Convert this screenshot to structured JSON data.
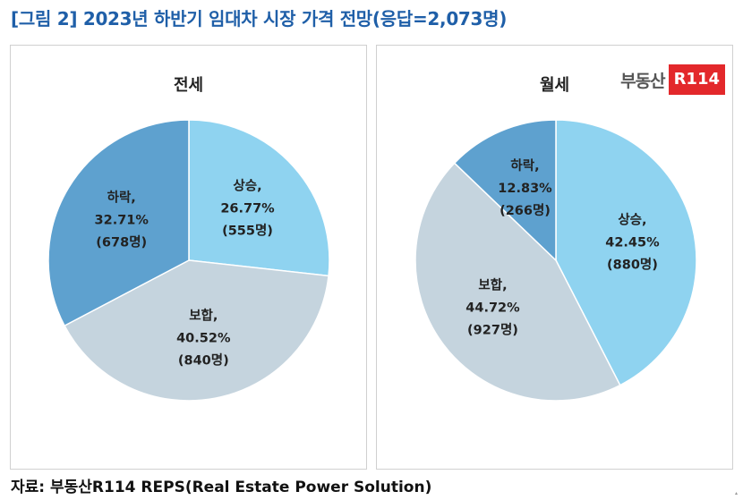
{
  "page": {
    "title": "[그림 2] 2023년 하반기 임대차 시장 가격 전망(응답=2,073명)",
    "source": "자료: 부동산R114 REPS(Real Estate Power Solution)",
    "logo_text": "부동산",
    "logo_badge": "R114",
    "watermark_text": "부동산",
    "watermark_badge": "R114"
  },
  "colors": {
    "title": "#1f5fa8",
    "logo": "#e3282b"
  },
  "chart_data": [
    {
      "type": "pie",
      "title": "전세",
      "slices": [
        {
          "label": "상승",
          "percent": 26.77,
          "count": "555명",
          "text": [
            "상승,",
            "26.77%",
            "(555명)"
          ],
          "color": "#8fd3f0"
        },
        {
          "label": "보합",
          "percent": 40.52,
          "count": "840명",
          "text": [
            "보합,",
            "40.52%",
            "(840명)"
          ],
          "color": "#c5d4de"
        },
        {
          "label": "하락",
          "percent": 32.71,
          "count": "678명",
          "text": [
            "하락,",
            "32.71%",
            "(678명)"
          ],
          "color": "#5ea1cf"
        }
      ]
    },
    {
      "type": "pie",
      "title": "월세",
      "slices": [
        {
          "label": "상승",
          "percent": 42.45,
          "count": "880명",
          "text": [
            "상승,",
            "42.45%",
            "(880명)"
          ],
          "color": "#8fd3f0"
        },
        {
          "label": "보합",
          "percent": 44.72,
          "count": "927명",
          "text": [
            "보합,",
            "44.72%",
            "(927명)"
          ],
          "color": "#c5d4de"
        },
        {
          "label": "하락",
          "percent": 12.83,
          "count": "266명",
          "text": [
            "하락,",
            "12.83%",
            "(266명)"
          ],
          "color": "#5ea1cf"
        }
      ]
    }
  ]
}
